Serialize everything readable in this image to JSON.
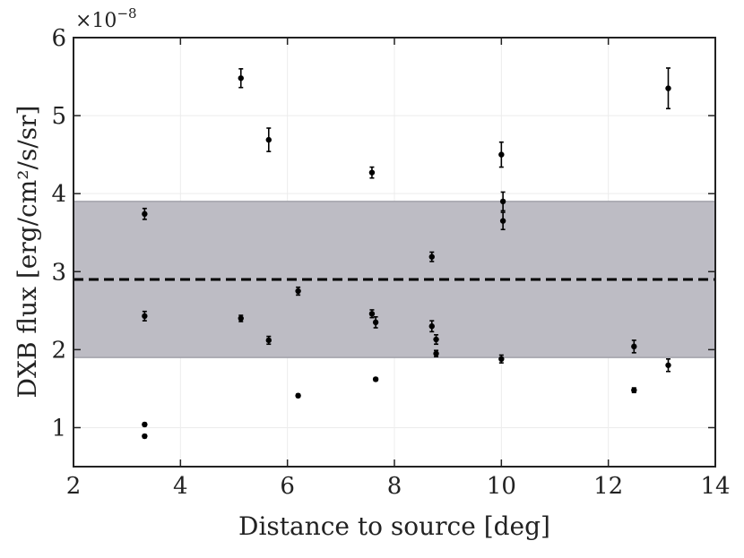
{
  "chart_data": {
    "type": "scatter",
    "xlabel": "Distance to source [deg]",
    "ylabel": "DXB flux [erg/cm²/s/sr]",
    "y_multiplier": {
      "base": "×10",
      "exponent": "−8"
    },
    "xlim": [
      2,
      14
    ],
    "ylim": [
      0.5,
      6
    ],
    "xticks": [
      2,
      4,
      6,
      8,
      10,
      12,
      14
    ],
    "yticks": [
      1,
      2,
      3,
      4,
      5,
      6
    ],
    "xtick_labels": [
      "2",
      "4",
      "6",
      "8",
      "10",
      "12",
      "14"
    ],
    "ytick_labels": [
      "1",
      "2",
      "3",
      "4",
      "5",
      "6"
    ],
    "grid": true,
    "mean_line": {
      "y": 2.9,
      "style": "dashed"
    },
    "band": {
      "y_low": 1.9,
      "y_high": 3.9
    },
    "points": [
      {
        "x": 3.33,
        "y": 3.74,
        "err": 0.07
      },
      {
        "x": 3.33,
        "y": 2.43,
        "err": 0.06
      },
      {
        "x": 3.33,
        "y": 1.04,
        "err": 0.02
      },
      {
        "x": 3.33,
        "y": 0.89,
        "err": 0.02
      },
      {
        "x": 5.13,
        "y": 5.48,
        "err": 0.12
      },
      {
        "x": 5.13,
        "y": 2.4,
        "err": 0.04
      },
      {
        "x": 5.65,
        "y": 4.69,
        "err": 0.15
      },
      {
        "x": 5.65,
        "y": 2.12,
        "err": 0.05
      },
      {
        "x": 6.2,
        "y": 2.75,
        "err": 0.05
      },
      {
        "x": 6.2,
        "y": 1.41,
        "err": 0.02
      },
      {
        "x": 7.58,
        "y": 4.27,
        "err": 0.07
      },
      {
        "x": 7.58,
        "y": 2.46,
        "err": 0.05
      },
      {
        "x": 7.65,
        "y": 2.35,
        "err": 0.07
      },
      {
        "x": 7.65,
        "y": 1.62,
        "err": 0.02
      },
      {
        "x": 8.7,
        "y": 3.19,
        "err": 0.06
      },
      {
        "x": 8.7,
        "y": 2.3,
        "err": 0.07
      },
      {
        "x": 8.78,
        "y": 2.13,
        "err": 0.06
      },
      {
        "x": 8.78,
        "y": 1.95,
        "err": 0.04
      },
      {
        "x": 10.0,
        "y": 4.5,
        "err": 0.16
      },
      {
        "x": 10.0,
        "y": 1.88,
        "err": 0.05
      },
      {
        "x": 10.03,
        "y": 3.9,
        "err": 0.12
      },
      {
        "x": 10.03,
        "y": 3.65,
        "err": 0.11
      },
      {
        "x": 12.48,
        "y": 2.04,
        "err": 0.08
      },
      {
        "x": 12.48,
        "y": 1.48,
        "err": 0.03
      },
      {
        "x": 13.12,
        "y": 5.35,
        "err": 0.26
      },
      {
        "x": 13.12,
        "y": 1.8,
        "err": 0.08
      }
    ]
  }
}
